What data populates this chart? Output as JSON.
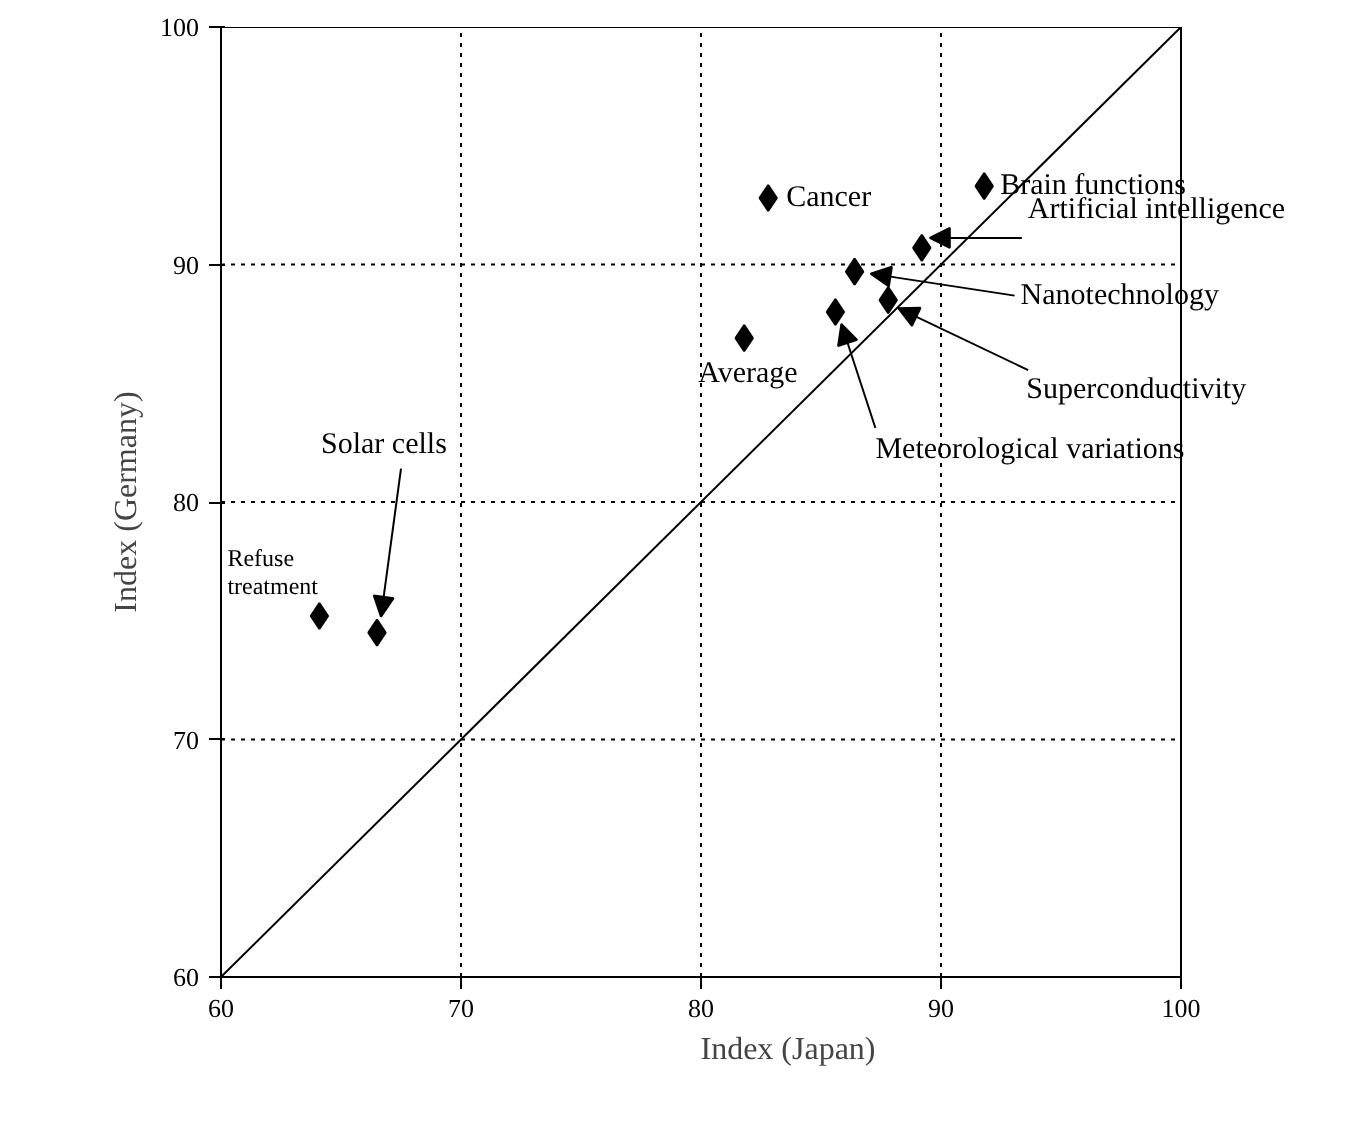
{
  "chart_data": {
    "type": "scatter",
    "xlabel": "Index (Japan)",
    "ylabel": "Index (Germany)",
    "xlim": [
      60,
      100
    ],
    "ylim": [
      60,
      100
    ],
    "xticks": [
      60,
      70,
      80,
      90,
      100
    ],
    "yticks": [
      60,
      70,
      80,
      90,
      100
    ],
    "grid": true,
    "series": [
      {
        "marker": "diamond",
        "color": "#000000",
        "x": [
          91.8,
          82.8,
          89.2,
          86.4,
          87.8,
          85.6,
          81.8,
          66.5,
          64.1
        ],
        "values": [
          93.3,
          92.8,
          90.7,
          89.7,
          88.5,
          88.0,
          86.9,
          74.5,
          75.2
        ]
      },
      {
        "type": "line",
        "color": "#000000",
        "x": [
          60,
          100
        ],
        "values": [
          60,
          100
        ]
      }
    ],
    "annotations": [
      {
        "text": "Brain functions",
        "x": 91.8,
        "y": 93.3
      },
      {
        "text": "Cancer",
        "x": 82.8,
        "y": 92.8
      },
      {
        "text": "Artificial intelligence",
        "x": 89.2,
        "y": 90.7
      },
      {
        "text": "Nanotechnology",
        "x": 86.4,
        "y": 89.7
      },
      {
        "text": "Superconductivity",
        "x": 87.8,
        "y": 88.5
      },
      {
        "text": "Meteorological variations",
        "x": 85.6,
        "y": 88.0
      },
      {
        "text": "Average",
        "x": 81.8,
        "y": 86.9
      },
      {
        "text": "Solar cells",
        "x": 66.5,
        "y": 74.5
      },
      {
        "text": "Refuse\ntreatment",
        "x": 64.1,
        "y": 75.2
      }
    ]
  }
}
